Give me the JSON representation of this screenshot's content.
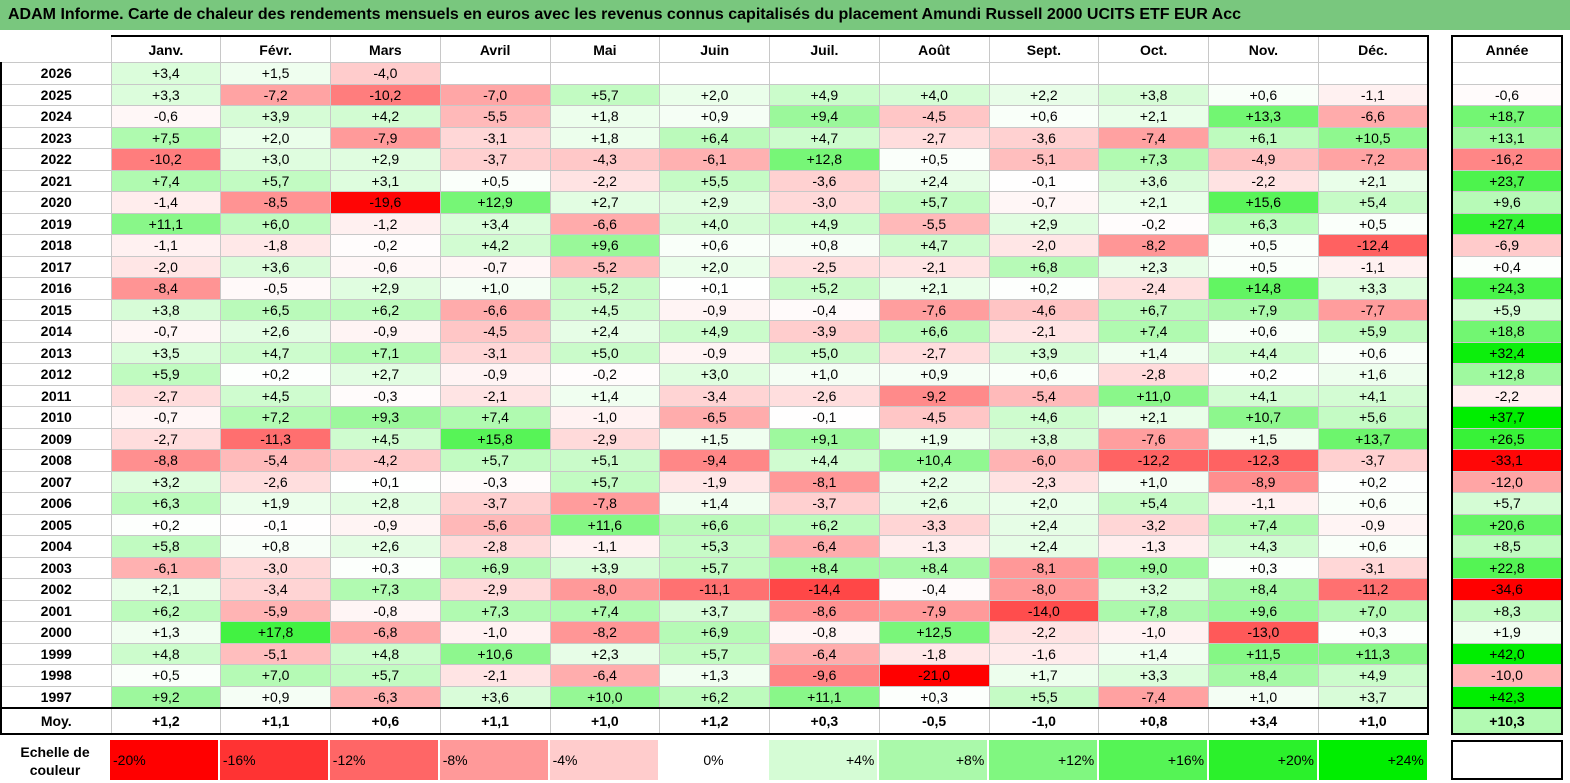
{
  "title": "ADAM Informe. Carte de chaleur des rendements mensuels en euros avec les revenus connus capitalisés du placement Amundi Russell 2000 UCITS ETF EUR Acc",
  "chart_data": {
    "type": "heatmap",
    "months": [
      "Janv.",
      "Févr.",
      "Mars",
      "Avril",
      "Mai",
      "Juin",
      "Juil.",
      "Août",
      "Sept.",
      "Oct.",
      "Nov.",
      "Déc."
    ],
    "year_header": "Année",
    "rows": [
      {
        "year": "2026",
        "months": [
          "+3,4",
          "+1,5",
          "-4,0",
          "",
          "",
          "",
          "",
          "",
          "",
          "",
          "",
          ""
        ],
        "total": ""
      },
      {
        "year": "2025",
        "months": [
          "+3,3",
          "-7,2",
          "-10,2",
          "-7,0",
          "+5,7",
          "+2,0",
          "+4,9",
          "+4,0",
          "+2,2",
          "+3,8",
          "+0,6",
          "-1,1"
        ],
        "total": "-0,6"
      },
      {
        "year": "2024",
        "months": [
          "-0,6",
          "+3,9",
          "+4,2",
          "-5,5",
          "+1,8",
          "+0,9",
          "+9,4",
          "-4,5",
          "+0,6",
          "+2,1",
          "+13,3",
          "-6,6"
        ],
        "total": "+18,7"
      },
      {
        "year": "2023",
        "months": [
          "+7,5",
          "+2,0",
          "-7,9",
          "-3,1",
          "+1,8",
          "+6,4",
          "+4,7",
          "-2,7",
          "-3,6",
          "-7,4",
          "+6,1",
          "+10,5"
        ],
        "total": "+13,1"
      },
      {
        "year": "2022",
        "months": [
          "-10,2",
          "+3,0",
          "+2,9",
          "-3,7",
          "-4,3",
          "-6,1",
          "+12,8",
          "+0,5",
          "-5,1",
          "+7,3",
          "-4,9",
          "-7,2"
        ],
        "total": "-16,2"
      },
      {
        "year": "2021",
        "months": [
          "+7,4",
          "+5,7",
          "+3,1",
          "+0,5",
          "-2,2",
          "+5,5",
          "-3,6",
          "+2,4",
          "-0,1",
          "+3,6",
          "-2,2",
          "+2,1"
        ],
        "total": "+23,7"
      },
      {
        "year": "2020",
        "months": [
          "-1,4",
          "-8,5",
          "-19,6",
          "+12,9",
          "+2,7",
          "+2,9",
          "-3,0",
          "+5,7",
          "-0,7",
          "+2,1",
          "+15,6",
          "+5,4"
        ],
        "total": "+9,6"
      },
      {
        "year": "2019",
        "months": [
          "+11,1",
          "+6,0",
          "-1,2",
          "+3,4",
          "-6,6",
          "+4,0",
          "+4,9",
          "-5,5",
          "+2,9",
          "-0,2",
          "+6,3",
          "+0,5"
        ],
        "total": "+27,4"
      },
      {
        "year": "2018",
        "months": [
          "-1,1",
          "-1,8",
          "-0,2",
          "+4,2",
          "+9,6",
          "+0,6",
          "+0,8",
          "+4,7",
          "-2,0",
          "-8,2",
          "+0,5",
          "-12,4"
        ],
        "total": "-6,9"
      },
      {
        "year": "2017",
        "months": [
          "-2,0",
          "+3,6",
          "-0,6",
          "-0,7",
          "-5,2",
          "+2,0",
          "-2,5",
          "-2,1",
          "+6,8",
          "+2,3",
          "+0,5",
          "-1,1"
        ],
        "total": "+0,4"
      },
      {
        "year": "2016",
        "months": [
          "-8,4",
          "-0,5",
          "+2,9",
          "+1,0",
          "+5,2",
          "+0,1",
          "+5,2",
          "+2,1",
          "+0,2",
          "-2,4",
          "+14,8",
          "+3,3"
        ],
        "total": "+24,3"
      },
      {
        "year": "2015",
        "months": [
          "+3,8",
          "+6,5",
          "+6,2",
          "-6,6",
          "+4,5",
          "-0,9",
          "-0,4",
          "-7,6",
          "-4,6",
          "+6,7",
          "+7,9",
          "-7,7"
        ],
        "total": "+5,9"
      },
      {
        "year": "2014",
        "months": [
          "-0,7",
          "+2,6",
          "-0,9",
          "-4,5",
          "+2,4",
          "+4,9",
          "-3,9",
          "+6,6",
          "-2,1",
          "+7,4",
          "+0,6",
          "+5,9"
        ],
        "total": "+18,8"
      },
      {
        "year": "2013",
        "months": [
          "+3,5",
          "+4,7",
          "+7,1",
          "-3,1",
          "+5,0",
          "-0,9",
          "+5,0",
          "-2,7",
          "+3,9",
          "+1,4",
          "+4,4",
          "+0,6"
        ],
        "total": "+32,4"
      },
      {
        "year": "2012",
        "months": [
          "+5,9",
          "+0,2",
          "+2,7",
          "-0,9",
          "-0,2",
          "+3,0",
          "+1,0",
          "+0,9",
          "+0,6",
          "-2,8",
          "+0,2",
          "+1,6"
        ],
        "total": "+12,8"
      },
      {
        "year": "2011",
        "months": [
          "-2,7",
          "+4,5",
          "-0,3",
          "-2,1",
          "+1,4",
          "-3,4",
          "-2,6",
          "-9,2",
          "-5,4",
          "+11,0",
          "+4,1",
          "+4,1"
        ],
        "total": "-2,2"
      },
      {
        "year": "2010",
        "months": [
          "-0,7",
          "+7,2",
          "+9,3",
          "+7,4",
          "-1,0",
          "-6,5",
          "-0,1",
          "-4,5",
          "+4,6",
          "+2,1",
          "+10,7",
          "+5,6"
        ],
        "total": "+37,7"
      },
      {
        "year": "2009",
        "months": [
          "-2,7",
          "-11,3",
          "+4,5",
          "+15,8",
          "-2,9",
          "+1,5",
          "+9,1",
          "+1,9",
          "+3,8",
          "-7,6",
          "+1,5",
          "+13,7"
        ],
        "total": "+26,5"
      },
      {
        "year": "2008",
        "months": [
          "-8,8",
          "-5,4",
          "-4,2",
          "+5,7",
          "+5,1",
          "-9,4",
          "+4,4",
          "+10,4",
          "-6,0",
          "-12,2",
          "-12,3",
          "-3,7"
        ],
        "total": "-33,1"
      },
      {
        "year": "2007",
        "months": [
          "+3,2",
          "-2,6",
          "+0,1",
          "-0,3",
          "+5,7",
          "-1,9",
          "-8,1",
          "+2,2",
          "-2,3",
          "+1,0",
          "-8,9",
          "+0,2"
        ],
        "total": "-12,0"
      },
      {
        "year": "2006",
        "months": [
          "+6,3",
          "+1,9",
          "+2,8",
          "-3,7",
          "-7,8",
          "+1,4",
          "-3,7",
          "+2,6",
          "+2,0",
          "+5,4",
          "-1,1",
          "+0,6"
        ],
        "total": "+5,7"
      },
      {
        "year": "2005",
        "months": [
          "+0,2",
          "-0,1",
          "-0,9",
          "-5,6",
          "+11,6",
          "+6,6",
          "+6,2",
          "-3,3",
          "+2,4",
          "-3,2",
          "+7,4",
          "-0,9"
        ],
        "total": "+20,6"
      },
      {
        "year": "2004",
        "months": [
          "+5,8",
          "+0,8",
          "+2,6",
          "-2,8",
          "-1,1",
          "+5,3",
          "-6,4",
          "-1,3",
          "+2,4",
          "-1,3",
          "+4,3",
          "+0,6"
        ],
        "total": "+8,5"
      },
      {
        "year": "2003",
        "months": [
          "-6,1",
          "-3,0",
          "+0,3",
          "+6,9",
          "+3,9",
          "+5,7",
          "+8,4",
          "+8,4",
          "-8,1",
          "+9,0",
          "+0,3",
          "-3,1"
        ],
        "total": "+22,8"
      },
      {
        "year": "2002",
        "months": [
          "+2,1",
          "-3,4",
          "+7,3",
          "-2,9",
          "-8,0",
          "-11,1",
          "-14,4",
          "-0,4",
          "-8,0",
          "+3,2",
          "+8,4",
          "-11,2"
        ],
        "total": "-34,6"
      },
      {
        "year": "2001",
        "months": [
          "+6,2",
          "-5,9",
          "-0,8",
          "+7,3",
          "+7,4",
          "+3,7",
          "-8,6",
          "-7,9",
          "-14,0",
          "+7,8",
          "+9,6",
          "+7,0"
        ],
        "total": "+8,3"
      },
      {
        "year": "2000",
        "months": [
          "+1,3",
          "+17,8",
          "-6,8",
          "-1,0",
          "-8,2",
          "+6,9",
          "-0,8",
          "+12,5",
          "-2,2",
          "-1,0",
          "-13,0",
          "+0,3"
        ],
        "total": "+1,9"
      },
      {
        "year": "1999",
        "months": [
          "+4,8",
          "-5,1",
          "+4,8",
          "+10,6",
          "+2,3",
          "+5,7",
          "-6,4",
          "-1,8",
          "-1,6",
          "+1,4",
          "+11,5",
          "+11,3"
        ],
        "total": "+42,0"
      },
      {
        "year": "1998",
        "months": [
          "+0,5",
          "+7,0",
          "+5,7",
          "-2,1",
          "-6,4",
          "+1,3",
          "-9,6",
          "-21,0",
          "+1,7",
          "+3,3",
          "+8,4",
          "+4,9"
        ],
        "total": "-10,0"
      },
      {
        "year": "1997",
        "months": [
          "+9,2",
          "+0,9",
          "-6,3",
          "+3,6",
          "+10,0",
          "+6,2",
          "+11,1",
          "+0,3",
          "+5,5",
          "-7,4",
          "+1,0",
          "+3,7"
        ],
        "total": "+42,3"
      }
    ],
    "average": {
      "label": "Moy.",
      "months": [
        "+1,2",
        "+1,1",
        "+0,6",
        "+1,1",
        "+1,0",
        "+1,2",
        "+0,3",
        "-0,5",
        "-1,0",
        "+0,8",
        "+3,4",
        "+1,0"
      ],
      "total": "+10,3"
    },
    "legend": {
      "label": "Echelle de couleur",
      "stops": [
        {
          "label": "-20%",
          "value": -20
        },
        {
          "label": "-16%",
          "value": -16
        },
        {
          "label": "-12%",
          "value": -12
        },
        {
          "label": "-8%",
          "value": -8
        },
        {
          "label": "-4%",
          "value": -4
        },
        {
          "label": "0%",
          "value": 0
        },
        {
          "label": "+4%",
          "value": 4
        },
        {
          "label": "+8%",
          "value": 8
        },
        {
          "label": "+12%",
          "value": 12
        },
        {
          "label": "+16%",
          "value": 16
        },
        {
          "label": "+20%",
          "value": 20
        },
        {
          "label": "+24%",
          "value": 24
        }
      ]
    },
    "colors": {
      "negative_max": "#ff0000",
      "neutral": "#ffffff",
      "positive_max": "#00ee00"
    }
  }
}
